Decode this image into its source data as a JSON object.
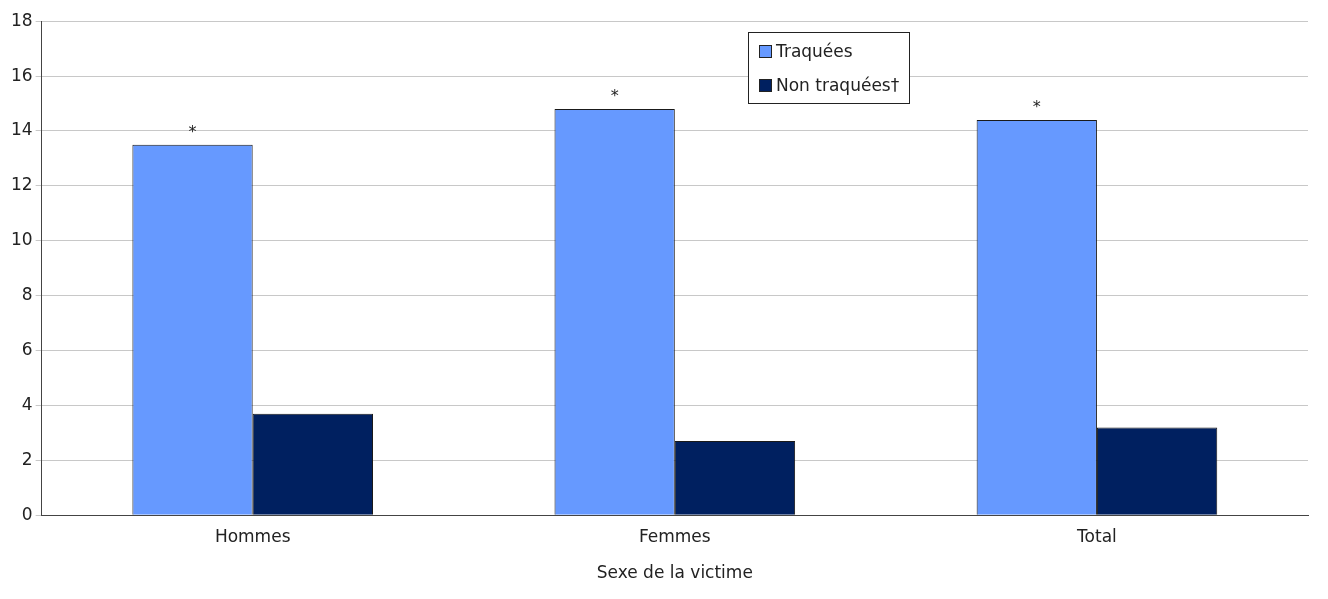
{
  "chart_data": {
    "type": "bar",
    "xlabel": "Sexe de la victime",
    "categories": [
      "Hommes",
      "Femmes",
      "Total"
    ],
    "series": [
      {
        "name": "Traquées",
        "color": "#6699ff",
        "values": [
          13.5,
          14.8,
          14.4
        ]
      },
      {
        "name": "Non traquées†",
        "color": "#002060",
        "values": [
          3.7,
          2.7,
          3.2
        ]
      }
    ],
    "ylim": [
      0,
      18
    ],
    "yticks": [
      0,
      2,
      4,
      6,
      8,
      10,
      12,
      14,
      16,
      18
    ],
    "grid": "y",
    "legend": "top",
    "annotations": [
      "*",
      "*",
      "*"
    ]
  }
}
